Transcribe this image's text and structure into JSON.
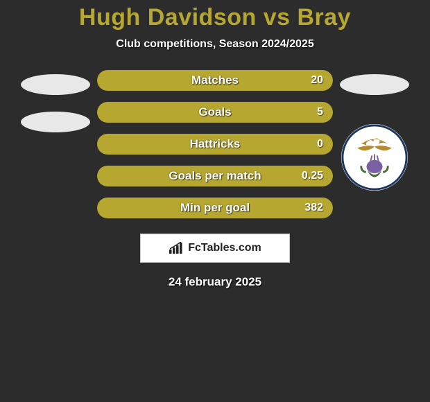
{
  "background_color": "#2c2c2c",
  "title": {
    "text": "Hugh Davidson vs Bray",
    "color": "#b6a731",
    "fontsize": 34
  },
  "subtitle": {
    "text": "Club competitions, Season 2024/2025",
    "fontsize": 16
  },
  "placeholders": {
    "left_count": 2,
    "ellipse_color": "#e8e8e8"
  },
  "crest": {
    "show": true,
    "ring_color": "#1b365d",
    "inner_bg": "#ffffff",
    "eagle_color": "#b88a2e",
    "thistle_color": "#4a6b3a"
  },
  "bars": {
    "track_color": "#6f6620",
    "fill_color": "#b6a731",
    "label_fontsize": 17,
    "value_fontsize": 16,
    "items": [
      {
        "label": "Matches",
        "value": "20",
        "fill_pct": 100
      },
      {
        "label": "Goals",
        "value": "5",
        "fill_pct": 100
      },
      {
        "label": "Hattricks",
        "value": "0",
        "fill_pct": 100
      },
      {
        "label": "Goals per match",
        "value": "0.25",
        "fill_pct": 100
      },
      {
        "label": "Min per goal",
        "value": "382",
        "fill_pct": 100
      }
    ]
  },
  "watermark": {
    "text": "FcTables.com",
    "fontsize": 16,
    "box_bg": "#ffffff",
    "box_border": "#cccccc",
    "icon_color": "#222222"
  },
  "date": {
    "text": "24 february 2025",
    "fontsize": 17
  }
}
